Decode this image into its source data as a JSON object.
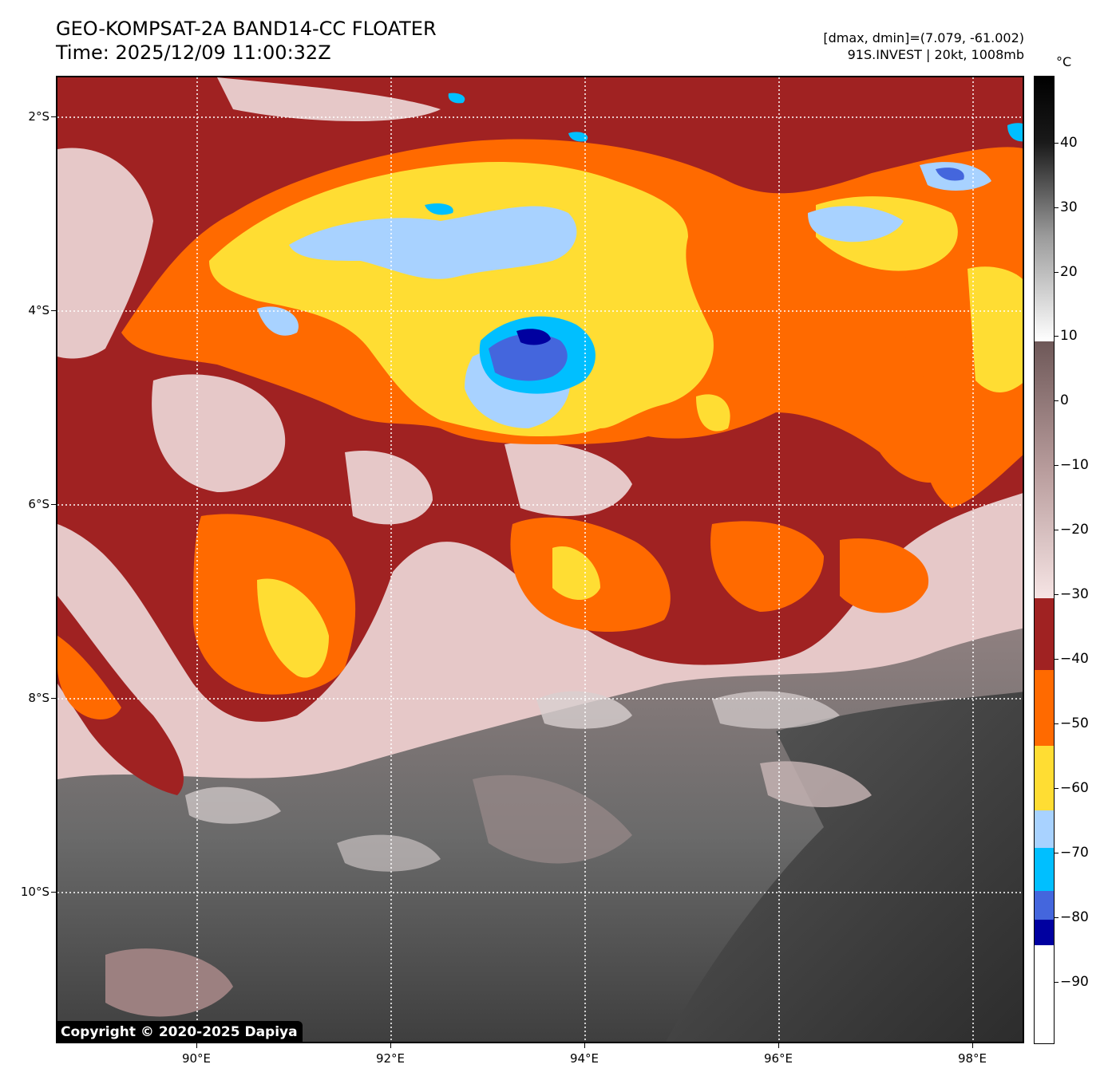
{
  "header": {
    "title_line1": "GEO-KOMPSAT-2A BAND14-CC FLOATER",
    "title_line2": "Time: 2025/12/09 11:00:32Z",
    "info_line1": "[dmax, dmin]=(7.079, -61.002)",
    "info_line2": "91S.INVEST | 20kt, 1008mb"
  },
  "map": {
    "lat_labels": [
      "2°S",
      "4°S",
      "6°S",
      "8°S",
      "10°S"
    ],
    "lon_labels": [
      "90°E",
      "92°E",
      "94°E",
      "96°E",
      "98°E"
    ],
    "copyright": "Copyright © 2020-2025 Dapiya"
  },
  "colorbar": {
    "unit": "°C",
    "labels": [
      "40",
      "30",
      "20",
      "10",
      "0",
      "−10",
      "−20",
      "−30",
      "−40",
      "−50",
      "−60",
      "−70",
      "−80",
      "−90"
    ],
    "colors": {
      "warm_max": "#000000",
      "warm_light": "#ffffff",
      "gray_mid": "#7a6262",
      "pink": "#f2dcdc",
      "dark_red": "#a02222",
      "orange": "#ff6a00",
      "yellow": "#ffdd33",
      "light_blue": "#a8d2ff",
      "cyan": "#00bfff",
      "royal_blue": "#4466dd",
      "navy": "#0000a0",
      "coldest": "#ffffff"
    }
  }
}
